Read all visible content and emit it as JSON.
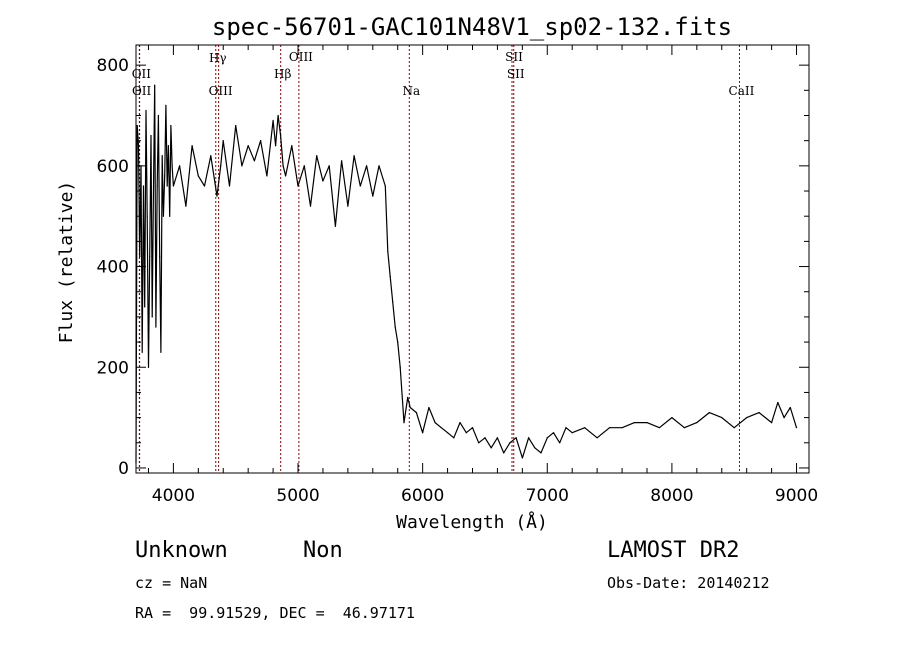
{
  "chart_data": {
    "type": "line",
    "title": "spec-56701-GAC101N48V1_sp02-132.fits",
    "xlabel": "Wavelength (Å)",
    "ylabel": "Flux (relative)",
    "xlim": [
      3700,
      9100
    ],
    "ylim": [
      -10,
      840
    ],
    "xticks": [
      "4000",
      "5000",
      "6000",
      "7000",
      "8000",
      "9000"
    ],
    "yticks": [
      "0",
      "200",
      "400",
      "600",
      "800"
    ],
    "grid": false,
    "series": [
      {
        "color": "#000000",
        "x": [
          3700,
          3710,
          3720,
          3730,
          3740,
          3750,
          3760,
          3770,
          3780,
          3790,
          3800,
          3810,
          3820,
          3830,
          3840,
          3850,
          3860,
          3870,
          3880,
          3890,
          3900,
          3910,
          3920,
          3930,
          3940,
          3950,
          3960,
          3970,
          3980,
          3990,
          4000,
          4050,
          4100,
          4150,
          4200,
          4250,
          4300,
          4350,
          4380,
          4400,
          4450,
          4500,
          4550,
          4600,
          4650,
          4700,
          4750,
          4800,
          4820,
          4840,
          4860,
          4880,
          4900,
          4950,
          5000,
          5050,
          5100,
          5150,
          5200,
          5250,
          5300,
          5350,
          5400,
          5450,
          5500,
          5550,
          5600,
          5650,
          5700,
          5720,
          5740,
          5760,
          5780,
          5800,
          5820,
          5850,
          5880,
          5900,
          5950,
          6000,
          6050,
          6100,
          6150,
          6200,
          6250,
          6300,
          6350,
          6400,
          6450,
          6500,
          6550,
          6600,
          6650,
          6700,
          6750,
          6800,
          6850,
          6900,
          6950,
          7000,
          7050,
          7100,
          7150,
          7200,
          7300,
          7400,
          7500,
          7600,
          7700,
          7800,
          7900,
          8000,
          8100,
          8200,
          8300,
          8400,
          8500,
          8600,
          8700,
          8800,
          8850,
          8900,
          8950,
          9000
        ],
        "y": [
          10,
          680,
          640,
          420,
          600,
          230,
          560,
          320,
          710,
          500,
          200,
          420,
          660,
          300,
          540,
          760,
          280,
          560,
          700,
          420,
          230,
          620,
          500,
          580,
          720,
          560,
          640,
          500,
          680,
          600,
          560,
          600,
          520,
          640,
          580,
          560,
          620,
          540,
          600,
          650,
          560,
          680,
          600,
          640,
          610,
          650,
          580,
          690,
          640,
          700,
          660,
          600,
          580,
          640,
          560,
          600,
          520,
          620,
          570,
          600,
          480,
          610,
          520,
          620,
          560,
          600,
          540,
          600,
          560,
          430,
          380,
          330,
          280,
          250,
          200,
          90,
          140,
          120,
          110,
          70,
          120,
          90,
          80,
          70,
          60,
          90,
          70,
          80,
          50,
          60,
          40,
          60,
          30,
          50,
          60,
          20,
          60,
          40,
          30,
          60,
          70,
          50,
          80,
          70,
          80,
          60,
          80,
          80,
          90,
          90,
          80,
          100,
          80,
          90,
          110,
          100,
          80,
          100,
          110,
          90,
          130,
          100,
          120,
          80
        ]
      }
    ],
    "lines": [
      {
        "label": "OII",
        "x": 3727
      },
      {
        "label": "OII",
        "x": 3729
      },
      {
        "label": "Hγ",
        "x": 4340
      },
      {
        "label": "OIII",
        "x": 4363
      },
      {
        "label": "Hβ",
        "x": 4861
      },
      {
        "label": "OIII",
        "x": 5007
      },
      {
        "label": "Na",
        "x": 5893
      },
      {
        "label": "SII",
        "x": 6717
      },
      {
        "label": "SII",
        "x": 6731
      },
      {
        "label": "CaII",
        "x": 8542
      }
    ]
  },
  "footer": {
    "classification": "Unknown",
    "subclass": "Non",
    "survey": "LAMOST DR2",
    "cz": "cz = NaN",
    "obs_date": "Obs-Date: 20140212",
    "coords": "RA =  99.91529, DEC =  46.97171"
  }
}
